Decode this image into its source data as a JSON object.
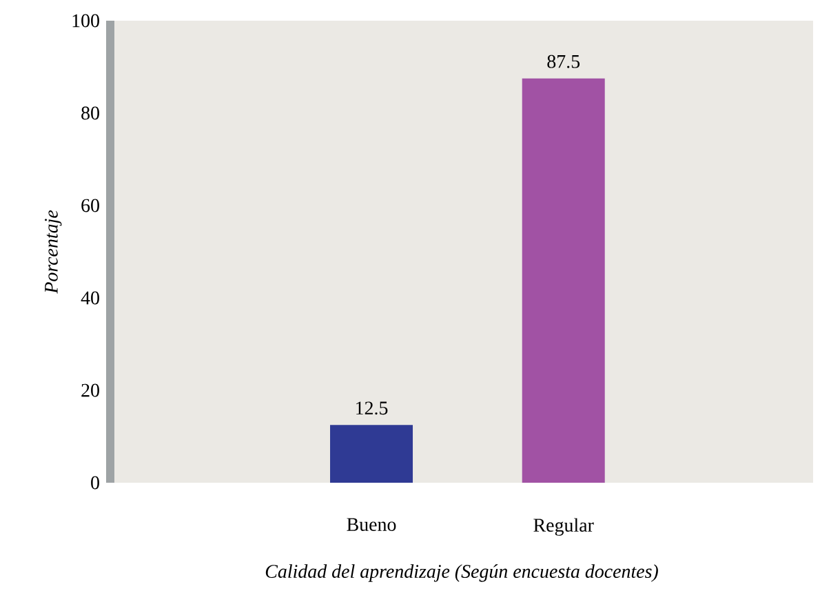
{
  "chart_data": {
    "type": "bar",
    "ylabel": "*Porcentaje*",
    "xlabel": "*Calidad del aprendizaje (Según encuesta docentes)*",
    "categories": [
      "Bueno",
      "Regular"
    ],
    "values": [
      12.5,
      87.5
    ],
    "colors": [
      "#2f3a94",
      "#a152a4"
    ],
    "data_labels": true,
    "ylim": [
      0,
      100
    ],
    "yticks": [
      0,
      20,
      40,
      60,
      80,
      100
    ],
    "grid": false
  }
}
